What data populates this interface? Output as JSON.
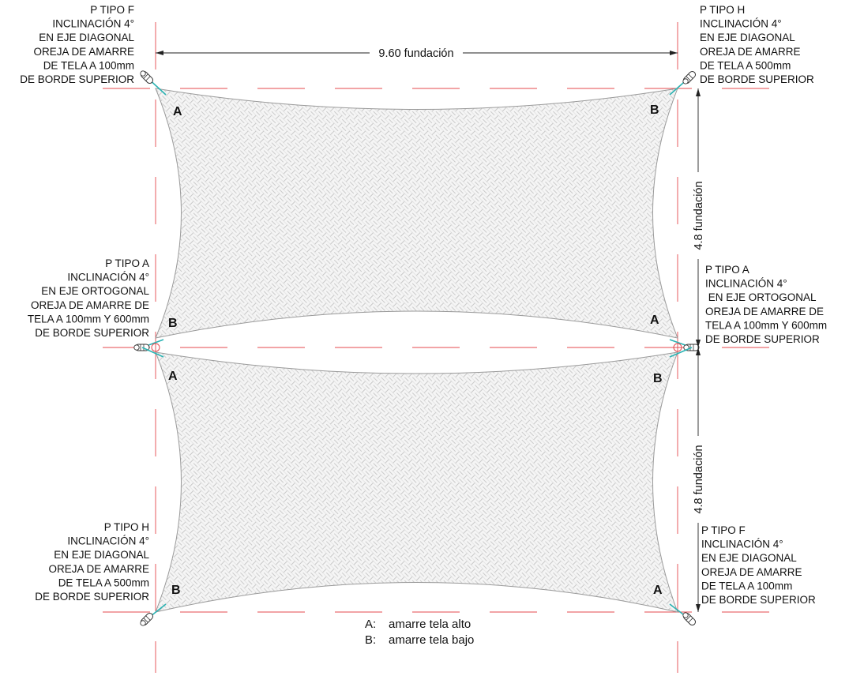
{
  "colors": {
    "axis_line": "#e5484d",
    "dimension_line": "#222222",
    "fabric_outline": "#9a9a9a",
    "fabric_fill": "#f4f4f4",
    "weave_pattern": "#c8c8c8",
    "cable": "#2bb3b3",
    "hardware": "#333333"
  },
  "dimensions": {
    "top_width": "9.60 fundación",
    "right_upper_height": "4.8 fundación",
    "right_lower_height": "4.8 fundación"
  },
  "post_notes": {
    "top_left": [
      "P TIPO F",
      "INCLINACIÓN 4°",
      "EN EJE DIAGONAL",
      "OREJA DE AMARRE",
      "DE TELA A 100mm",
      "DE BORDE SUPERIOR"
    ],
    "top_right": [
      "P TIPO H",
      "INCLINACIÓN 4°",
      "EN EJE DIAGONAL",
      "OREJA DE AMARRE",
      "DE TELA A 500mm",
      "DE BORDE SUPERIOR"
    ],
    "mid_left": [
      "P TIPO A",
      "INCLINACIÓN 4°",
      "EN EJE ORTOGONAL",
      "OREJA DE AMARRE DE",
      "TELA A 100mm Y 600mm",
      "DE BORDE SUPERIOR"
    ],
    "mid_right": [
      "P TIPO A",
      "INCLINACIÓN 4°",
      " EN EJE ORTOGONAL",
      "OREJA DE AMARRE DE",
      "TELA A 100mm Y 600mm",
      "DE BORDE SUPERIOR"
    ],
    "bottom_left": [
      "P TIPO H",
      "INCLINACIÓN 4°",
      "EN EJE DIAGONAL",
      "OREJA DE AMARRE",
      "DE TELA A 500mm",
      "DE BORDE SUPERIOR"
    ],
    "bottom_right": [
      "P TIPO F",
      "INCLINACIÓN 4°",
      "EN EJE DIAGONAL",
      "OREJA DE AMARRE",
      "DE TELA A 100mm",
      "DE BORDE SUPERIOR"
    ]
  },
  "corner_labels": {
    "sail1_top_left": "A",
    "sail1_top_right": "B",
    "sail1_bottom_left": "B",
    "sail1_bottom_right": "A",
    "sail2_top_left": "A",
    "sail2_top_right": "B",
    "sail2_bottom_left": "B",
    "sail2_bottom_right": "A"
  },
  "legend": {
    "a_key": "A:",
    "a_text": "amarre tela alto",
    "b_key": "B:",
    "b_text": "amarre tela bajo"
  }
}
